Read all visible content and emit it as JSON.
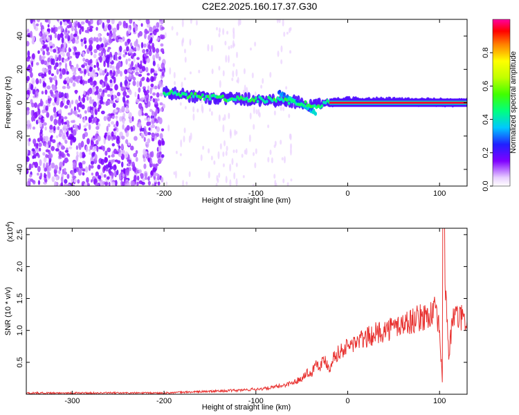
{
  "title": "C2E2.2025.160.17.37.G30",
  "chart_data": [
    {
      "type": "heatmap",
      "xlabel": "Height of straight line (km)",
      "ylabel": "Frequency (Hz)",
      "xlim": [
        -350,
        130
      ],
      "ylim": [
        -50,
        50
      ],
      "xticks": [
        -300,
        -200,
        -100,
        0,
        100
      ],
      "xtick_labels": [
        "-300",
        "-200",
        "-100",
        "0",
        "100"
      ],
      "yticks": [
        -40,
        -20,
        0,
        20,
        40
      ],
      "ytick_labels": [
        "-40",
        "-20",
        "0",
        "20",
        "40"
      ],
      "colorbar": {
        "label": "Normalized spectral amplitude",
        "range": [
          0,
          1
        ],
        "ticks": [
          0.0,
          0.2,
          0.4,
          0.6,
          0.8
        ],
        "tick_labels": [
          "0.0",
          "0.2",
          "0.4",
          "0.6",
          "0.8"
        ]
      },
      "features": {
        "noise_region_x": [
          -350,
          -200
        ],
        "signal_track": [
          {
            "x": -200,
            "f": 6
          },
          {
            "x": -150,
            "f": 3
          },
          {
            "x": -100,
            "f": 2
          },
          {
            "x": -60,
            "f": 1
          },
          {
            "x": -35,
            "f": -2
          },
          {
            "x": -20,
            "f": 0
          },
          {
            "x": 0,
            "f": 1
          },
          {
            "x": 130,
            "f": 0
          }
        ]
      }
    },
    {
      "type": "line",
      "xlabel": "Height of straight line (km)",
      "ylabel": "SNR (10 * v/v)",
      "y_multiplier": "(x10",
      "y_multiplier_exp": "4",
      "xlim": [
        -350,
        130
      ],
      "ylim": [
        0,
        2.6
      ],
      "xticks": [
        -300,
        -200,
        -100,
        0,
        100
      ],
      "xtick_labels": [
        "-300",
        "-200",
        "-100",
        "0",
        "100"
      ],
      "yticks": [
        0.5,
        1.0,
        1.5,
        2.0,
        2.5
      ],
      "ytick_labels": [
        "0.5",
        "1.0",
        "1.5",
        "2.0",
        "2.5"
      ],
      "series": [
        {
          "color": "#e8312f",
          "x": [
            -350,
            -300,
            -250,
            -200,
            -180,
            -160,
            -140,
            -120,
            -100,
            -90,
            -80,
            -70,
            -60,
            -50,
            -45,
            -40,
            -35,
            -30,
            -25,
            -20,
            -15,
            -10,
            -5,
            0,
            10,
            20,
            30,
            40,
            50,
            60,
            70,
            80,
            90,
            95,
            100,
            103,
            106,
            110,
            115,
            120,
            125,
            130
          ],
          "y": [
            0.02,
            0.02,
            0.02,
            0.02,
            0.03,
            0.04,
            0.05,
            0.06,
            0.08,
            0.09,
            0.11,
            0.14,
            0.18,
            0.25,
            0.35,
            0.3,
            0.5,
            0.45,
            0.55,
            0.4,
            0.6,
            0.65,
            0.7,
            0.75,
            0.82,
            0.88,
            0.95,
            1.0,
            1.05,
            1.1,
            1.15,
            1.2,
            1.25,
            1.3,
            1.0,
            0.2,
            1.9,
            0.6,
            1.25,
            1.2,
            1.18,
            1.15
          ]
        }
      ]
    }
  ]
}
